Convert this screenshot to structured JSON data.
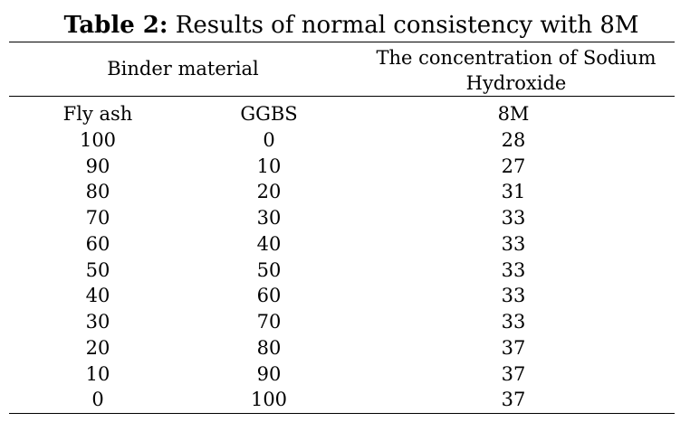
{
  "caption": {
    "label": "Table 2:",
    "text": " Results of normal consistency with 8M"
  },
  "header": {
    "binder_material": "Binder material",
    "concentration_line1": "The concentration of Sodium",
    "concentration_line2": "Hydroxide"
  },
  "rows": [
    [
      "Fly ash",
      "GGBS",
      "8M"
    ],
    [
      "100",
      "0",
      "28"
    ],
    [
      "90",
      "10",
      "27"
    ],
    [
      "80",
      "20",
      "31"
    ],
    [
      "70",
      "30",
      "33"
    ],
    [
      "60",
      "40",
      "33"
    ],
    [
      "50",
      "50",
      "33"
    ],
    [
      "40",
      "60",
      "33"
    ],
    [
      "30",
      "70",
      "33"
    ],
    [
      "20",
      "80",
      "37"
    ],
    [
      "10",
      "90",
      "37"
    ],
    [
      "0",
      "100",
      "37"
    ]
  ]
}
